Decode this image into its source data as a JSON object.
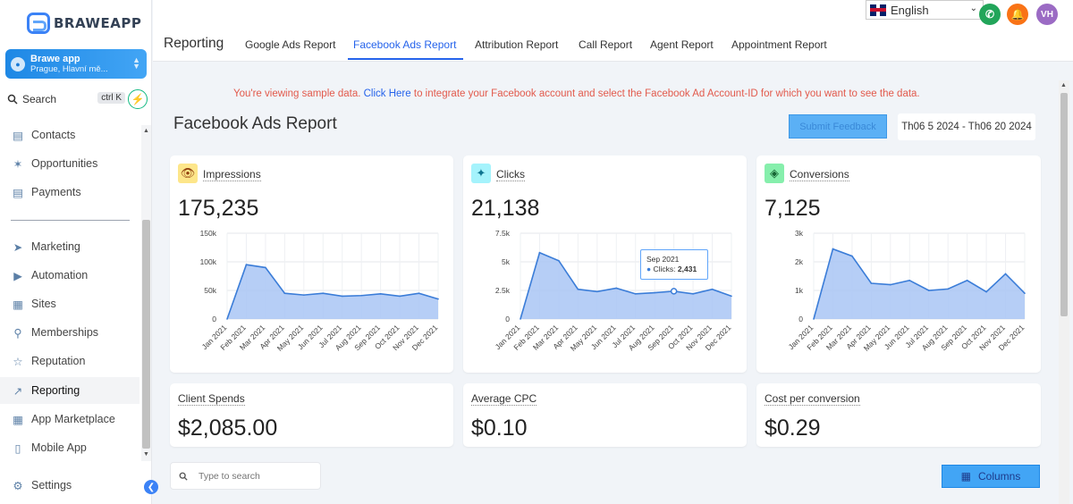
{
  "sidebar": {
    "brand": "BRAWEAPP",
    "account": {
      "name": "Brawe app",
      "location": "Prague, Hlavní mě..."
    },
    "search": {
      "label": "Search",
      "shortcut": "ctrl K"
    },
    "items": [
      {
        "label": "Contacts",
        "icon": "contacts-icon"
      },
      {
        "label": "Opportunities",
        "icon": "opportunities-icon"
      },
      {
        "label": "Payments",
        "icon": "payments-icon"
      },
      {
        "label": "Marketing",
        "icon": "marketing-icon"
      },
      {
        "label": "Automation",
        "icon": "automation-icon"
      },
      {
        "label": "Sites",
        "icon": "sites-icon"
      },
      {
        "label": "Memberships",
        "icon": "memberships-icon"
      },
      {
        "label": "Reputation",
        "icon": "reputation-icon"
      },
      {
        "label": "Reporting",
        "icon": "reporting-icon",
        "active": true
      },
      {
        "label": "App Marketplace",
        "icon": "app-marketplace-icon"
      },
      {
        "label": "Mobile App",
        "icon": "mobile-app-icon"
      }
    ],
    "settings": "Settings"
  },
  "header": {
    "title": "Reporting",
    "tabs": [
      "Google Ads Report",
      "Facebook Ads Report",
      "Attribution Report",
      "Call Report",
      "Agent Report",
      "Appointment Report"
    ],
    "active_tab": "Facebook Ads Report",
    "language": "English",
    "avatar": "VH"
  },
  "main": {
    "banner_pre": "You're viewing sample data.",
    "banner_link": "Click Here",
    "banner_post": "to integrate your Facebook account and select the Facebook Ad Account-ID for which you want to see the data.",
    "title": "Facebook Ads Report",
    "submit_label": "Submit Feedback",
    "date_range": "Th06 5 2024 - Th06 20 2024",
    "table_search_placeholder": "Type to search",
    "columns_label": "Columns"
  },
  "cards": {
    "impressions": {
      "label": "Impressions",
      "value": "175,235"
    },
    "clicks": {
      "label": "Clicks",
      "value": "21,138"
    },
    "conversions": {
      "label": "Conversions",
      "value": "7,125"
    },
    "client_spends": {
      "label": "Client Spends",
      "value": "$2,085.00"
    },
    "avg_cpc": {
      "label": "Average CPC",
      "value": "$0.10"
    },
    "cost_per_conversion": {
      "label": "Cost per conversion",
      "value": "$0.29"
    }
  },
  "tooltip": {
    "title": "Sep 2021",
    "series": "Clicks:",
    "value": "2,431"
  },
  "chart_data": [
    {
      "type": "area",
      "title": "Impressions",
      "categories": [
        "Jan 2021",
        "Feb 2021",
        "Mar 2021",
        "Apr 2021",
        "May 2021",
        "Jun 2021",
        "Jul 2021",
        "Aug 2021",
        "Sep 2021",
        "Oct 2021",
        "Nov 2021",
        "Dec 2021"
      ],
      "values": [
        0,
        95000,
        90000,
        45000,
        42000,
        45000,
        40000,
        41000,
        44000,
        40000,
        45000,
        35000
      ],
      "ylim": [
        0,
        150000
      ],
      "yticks": [
        "150k",
        "100k",
        "50k",
        "0"
      ],
      "color": "#3b7dd8"
    },
    {
      "type": "area",
      "title": "Clicks",
      "categories": [
        "Jan 2021",
        "Feb 2021",
        "Mar 2021",
        "Apr 2021",
        "May 2021",
        "Jun 2021",
        "Jul 2021",
        "Aug 2021",
        "Sep 2021",
        "Oct 2021",
        "Nov 2021",
        "Dec 2021"
      ],
      "values": [
        0,
        5800,
        5100,
        2600,
        2400,
        2700,
        2200,
        2300,
        2431,
        2200,
        2600,
        2000
      ],
      "ylim": [
        0,
        7500
      ],
      "yticks": [
        "7.5k",
        "5k",
        "2.5k",
        "0"
      ],
      "color": "#3b7dd8"
    },
    {
      "type": "area",
      "title": "Conversions",
      "categories": [
        "Jan 2021",
        "Feb 2021",
        "Mar 2021",
        "Apr 2021",
        "May 2021",
        "Jun 2021",
        "Jul 2021",
        "Aug 2021",
        "Sep 2021",
        "Oct 2021",
        "Nov 2021",
        "Dec 2021"
      ],
      "values": [
        0,
        2450,
        2200,
        1250,
        1200,
        1350,
        1000,
        1050,
        1350,
        950,
        1580,
        900
      ],
      "ylim": [
        0,
        3000
      ],
      "yticks": [
        "3k",
        "2k",
        "1k",
        "0"
      ],
      "color": "#3b7dd8"
    }
  ]
}
